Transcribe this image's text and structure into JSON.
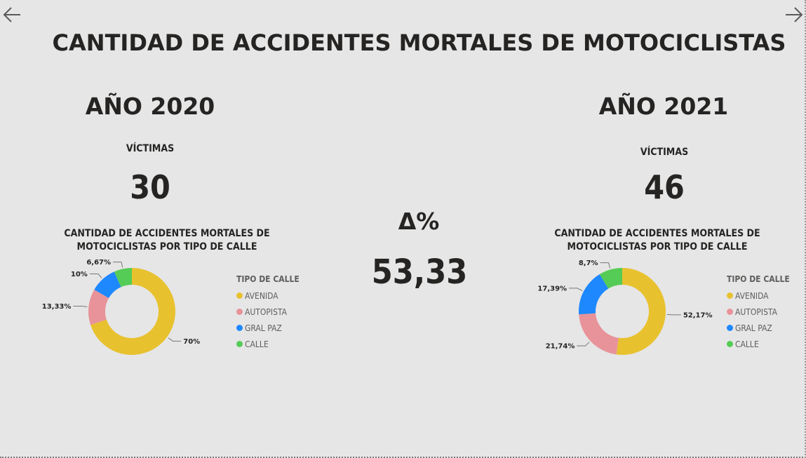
{
  "page": {
    "title": "CANTIDAD DE ACCIDENTES MORTALES DE MOTOCICLISTAS",
    "nav": {
      "prev_icon": "arrow-left-icon",
      "next_icon": "arrow-right-icon"
    }
  },
  "left": {
    "year_title": "AÑO 2020",
    "kpi_label": "VÍCTIMAS",
    "kpi_value": "30"
  },
  "right": {
    "year_title": "AÑO 2021",
    "kpi_label": "VÍCTIMAS",
    "kpi_value": "46"
  },
  "center": {
    "delta_label": "Δ%",
    "delta_value": "53,33"
  },
  "colors": {
    "AVENIDA": "#e8c12f",
    "AUTOPISTA": "#e8939a",
    "GRAL PAZ": "#1e88ff",
    "CALLE": "#55cc55"
  },
  "chart_data": [
    {
      "type": "pie",
      "title": "CANTIDAD DE ACCIDENTES MORTALES DE MOTOCICLISTAS POR TIPO DE CALLE",
      "legend_title": "TIPO DE CALLE",
      "legend_placement": "right",
      "categories": [
        "AVENIDA",
        "AUTOPISTA",
        "GRAL PAZ",
        "CALLE"
      ],
      "values": [
        70,
        13.33,
        10,
        6.67
      ],
      "labels": [
        "70%",
        "13,33%",
        "10%",
        "6,67%"
      ]
    },
    {
      "type": "pie",
      "title": "CANTIDAD DE ACCIDENTES MORTALES DE MOTOCICLISTAS POR TIPO DE CALLE",
      "legend_title": "TIPO DE CALLE",
      "legend_placement": "right",
      "categories": [
        "AVENIDA",
        "AUTOPISTA",
        "GRAL PAZ",
        "CALLE"
      ],
      "values": [
        52.17,
        21.74,
        17.39,
        8.7
      ],
      "labels": [
        "52,17%",
        "21,74%",
        "17,39%",
        "8,7%"
      ]
    }
  ]
}
